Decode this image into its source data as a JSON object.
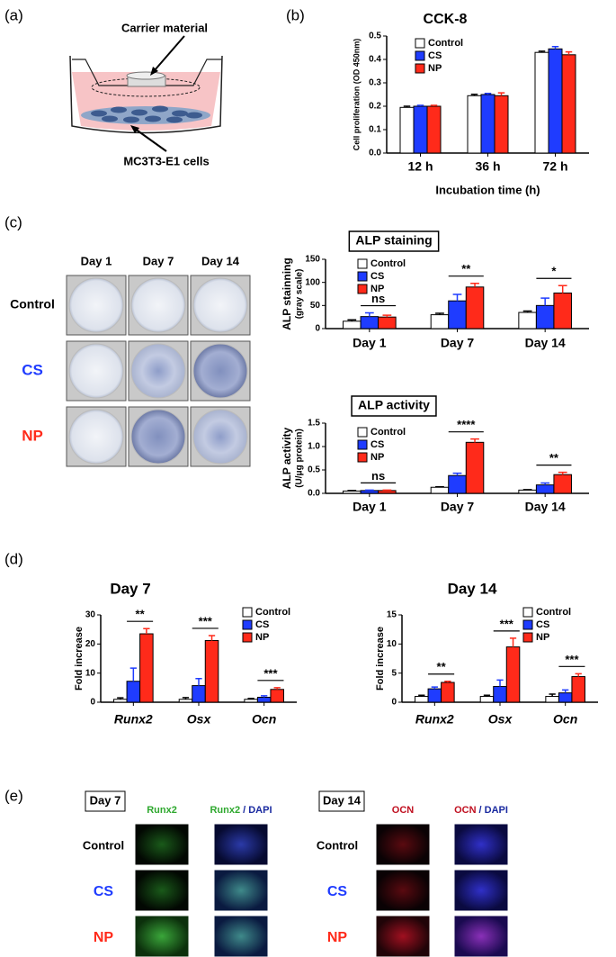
{
  "panel_labels": [
    "(a)",
    "(b)",
    "(c)",
    "(d)",
    "(e)"
  ],
  "schematic": {
    "top_label": "Carrier material",
    "bottom_label": "MC3T3-E1 cells"
  },
  "alp_images": {
    "columns": [
      "Day 1",
      "Day 7",
      "Day 14"
    ],
    "rows": [
      "Control",
      "CS",
      "NP"
    ]
  },
  "if_images": [
    {
      "title": "Day 7",
      "stain": "Runx2",
      "merge": [
        "Runx2",
        "/ DAPI"
      ],
      "rows": [
        "Control",
        "CS",
        "NP"
      ]
    },
    {
      "title": "Day 14",
      "stain": "OCN",
      "merge": [
        "OCN",
        "/ DAPI"
      ],
      "rows": [
        "Control",
        "CS",
        "NP"
      ]
    }
  ],
  "chart_data": [
    {
      "type": "bar",
      "title": "CCK-8",
      "ylabel": "Cell proliferation (OD 450nm)",
      "xlabel": "Incubation time (h)",
      "categories": [
        "12 h",
        "36 h",
        "72 h"
      ],
      "legend": "upper left",
      "series": [
        {
          "name": "Control",
          "color": "#ffffff",
          "values": [
            0.195,
            0.245,
            0.43
          ],
          "errors": [
            0.005,
            0.006,
            0.005
          ]
        },
        {
          "name": "CS",
          "color": "#1f3cff",
          "values": [
            0.2,
            0.25,
            0.445
          ],
          "errors": [
            0.004,
            0.005,
            0.01
          ]
        },
        {
          "name": "NP",
          "color": "#ff2a1a",
          "values": [
            0.2,
            0.245,
            0.42
          ],
          "errors": [
            0.004,
            0.012,
            0.012
          ]
        }
      ],
      "ylim": [
        0,
        0.5
      ],
      "yticks": [
        {
          "value": 0,
          "label": "0.0"
        },
        0.1,
        0.2,
        0.3,
        0.4,
        0.5
      ]
    },
    {
      "type": "bar",
      "title": "ALP staining",
      "ylabel": "ALP  stainning",
      "ylabel_unit": "(gray scale)",
      "categories": [
        "Day 1",
        "Day 7",
        "Day 14"
      ],
      "legend": "upper left",
      "series": [
        {
          "name": "Control",
          "color": "#ffffff",
          "values": [
            16,
            30,
            35
          ],
          "errors": [
            3,
            3,
            3
          ]
        },
        {
          "name": "CS",
          "color": "#1f3cff",
          "values": [
            26,
            60,
            50
          ],
          "errors": [
            8,
            14,
            16
          ]
        },
        {
          "name": "NP",
          "color": "#ff2a1a",
          "values": [
            25,
            90,
            77
          ],
          "errors": [
            4,
            8,
            16
          ]
        }
      ],
      "ylim": [
        0,
        150
      ],
      "yticks": [
        0,
        50,
        100,
        150
      ],
      "annotations": [
        {
          "text": "ns",
          "category": 0
        },
        {
          "text": "**",
          "category": 1
        },
        {
          "text": "*",
          "category": 2
        }
      ]
    },
    {
      "type": "bar",
      "title": "ALP activity",
      "ylabel": "ALP  activity",
      "ylabel_unit": "(U/μg protein)",
      "categories": [
        "Day 1",
        "Day 7",
        "Day 14"
      ],
      "legend": "upper left",
      "series": [
        {
          "name": "Control",
          "color": "#ffffff",
          "values": [
            0.05,
            0.13,
            0.07
          ],
          "errors": [
            0.01,
            0.01,
            0.01
          ]
        },
        {
          "name": "CS",
          "color": "#1f3cff",
          "values": [
            0.06,
            0.38,
            0.18
          ],
          "errors": [
            0.01,
            0.05,
            0.04
          ]
        },
        {
          "name": "NP",
          "color": "#ff2a1a",
          "values": [
            0.06,
            1.09,
            0.4
          ],
          "errors": [
            0.01,
            0.07,
            0.05
          ]
        }
      ],
      "ylim": [
        0,
        1.5
      ],
      "yticks": [
        {
          "value": 0,
          "label": "0.0"
        },
        0.5,
        {
          "value": 1,
          "label": "1.0"
        },
        1.5
      ],
      "annotations": [
        {
          "text": "ns",
          "category": 0
        },
        {
          "text": "****",
          "category": 1
        },
        {
          "text": "**",
          "category": 2
        }
      ]
    },
    {
      "type": "bar",
      "title": "Day 7",
      "ylabel": "Fold increase",
      "categories": [
        "Runx2",
        "Osx",
        "Ocn"
      ],
      "legend": "upper right",
      "series": [
        {
          "name": "Control",
          "color": "#ffffff",
          "values": [
            1,
            1,
            1
          ],
          "errors": [
            0.5,
            0.6,
            0.3
          ]
        },
        {
          "name": "CS",
          "color": "#1f3cff",
          "values": [
            7.2,
            5.7,
            1.7
          ],
          "errors": [
            4.5,
            2.4,
            0.5
          ]
        },
        {
          "name": "NP",
          "color": "#ff2a1a",
          "values": [
            23.5,
            21.2,
            4.4
          ],
          "errors": [
            1.8,
            1.7,
            0.6
          ]
        }
      ],
      "ylim": [
        0,
        30
      ],
      "yticks": [
        0,
        10,
        20,
        30
      ],
      "annotations": [
        {
          "text": "**",
          "category": 0
        },
        {
          "text": "***",
          "category": 1
        },
        {
          "text": "***",
          "category": 2
        }
      ]
    },
    {
      "type": "bar",
      "title": "Day 14",
      "ylabel": "Fold increase",
      "categories": [
        "Runx2",
        "Osx",
        "Ocn"
      ],
      "legend": "upper right",
      "series": [
        {
          "name": "Control",
          "color": "#ffffff",
          "values": [
            1,
            1,
            1
          ],
          "errors": [
            0.2,
            0.2,
            0.4
          ]
        },
        {
          "name": "CS",
          "color": "#1f3cff",
          "values": [
            2.3,
            2.7,
            1.6
          ],
          "errors": [
            0.3,
            1.1,
            0.5
          ]
        },
        {
          "name": "NP",
          "color": "#ff2a1a",
          "values": [
            3.4,
            9.5,
            4.4
          ],
          "errors": [
            0.2,
            1.5,
            0.5
          ]
        }
      ],
      "ylim": [
        0,
        15
      ],
      "yticks": [
        0,
        5,
        10,
        15
      ],
      "annotations": [
        {
          "text": "**",
          "category": 0
        },
        {
          "text": "***",
          "category": 1
        },
        {
          "text": "***",
          "category": 2
        }
      ]
    }
  ]
}
